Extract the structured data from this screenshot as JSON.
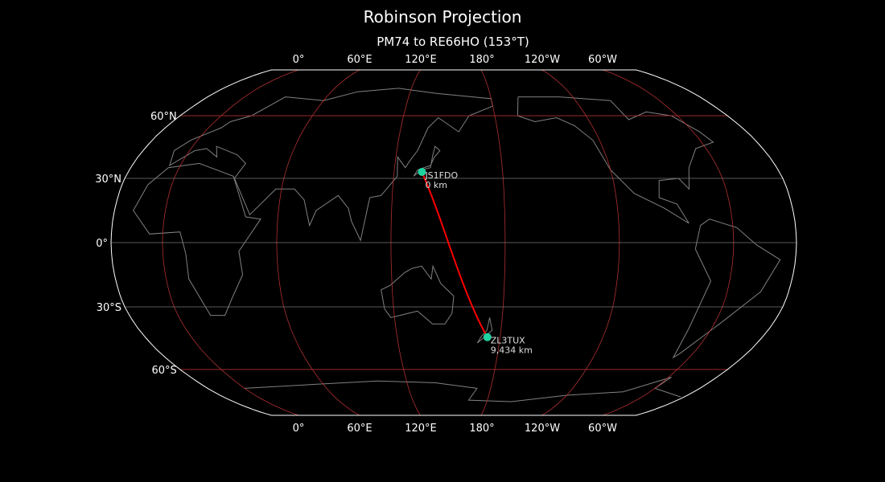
{
  "title": "Robinson Projection",
  "subtitle": "PM74 to RE66HO (153°T)",
  "map": {
    "projection": "Robinson",
    "central_longitude": 153,
    "meridian_labels": [
      {
        "lon": 0,
        "label": "0°"
      },
      {
        "lon": 60,
        "label": "60°E"
      },
      {
        "lon": 120,
        "label": "120°E"
      },
      {
        "lon": 180,
        "label": "180°"
      },
      {
        "lon": 240,
        "label": "120°W"
      },
      {
        "lon": 300,
        "label": "60°W"
      }
    ],
    "parallel_labels": [
      {
        "lat": 60,
        "label": "60°N"
      },
      {
        "lat": 30,
        "label": "30°N"
      },
      {
        "lat": 0,
        "label": "0°"
      },
      {
        "lat": -30,
        "label": "30°S"
      },
      {
        "lat": -60,
        "label": "60°S"
      }
    ],
    "colors": {
      "background": "#000000",
      "coastline": "#808080",
      "graticule": "#b03030",
      "path": "#ff0000",
      "station": "#1fd3a0",
      "outline": "#ffffff"
    },
    "stations": [
      {
        "call": "JS1FDO",
        "distance": "0 km",
        "lat": 33.0,
        "lon": 135.4
      },
      {
        "call": "ZL3TUX",
        "distance": "9,434 km",
        "lat": -44.2,
        "lon": 172.6
      }
    ]
  }
}
